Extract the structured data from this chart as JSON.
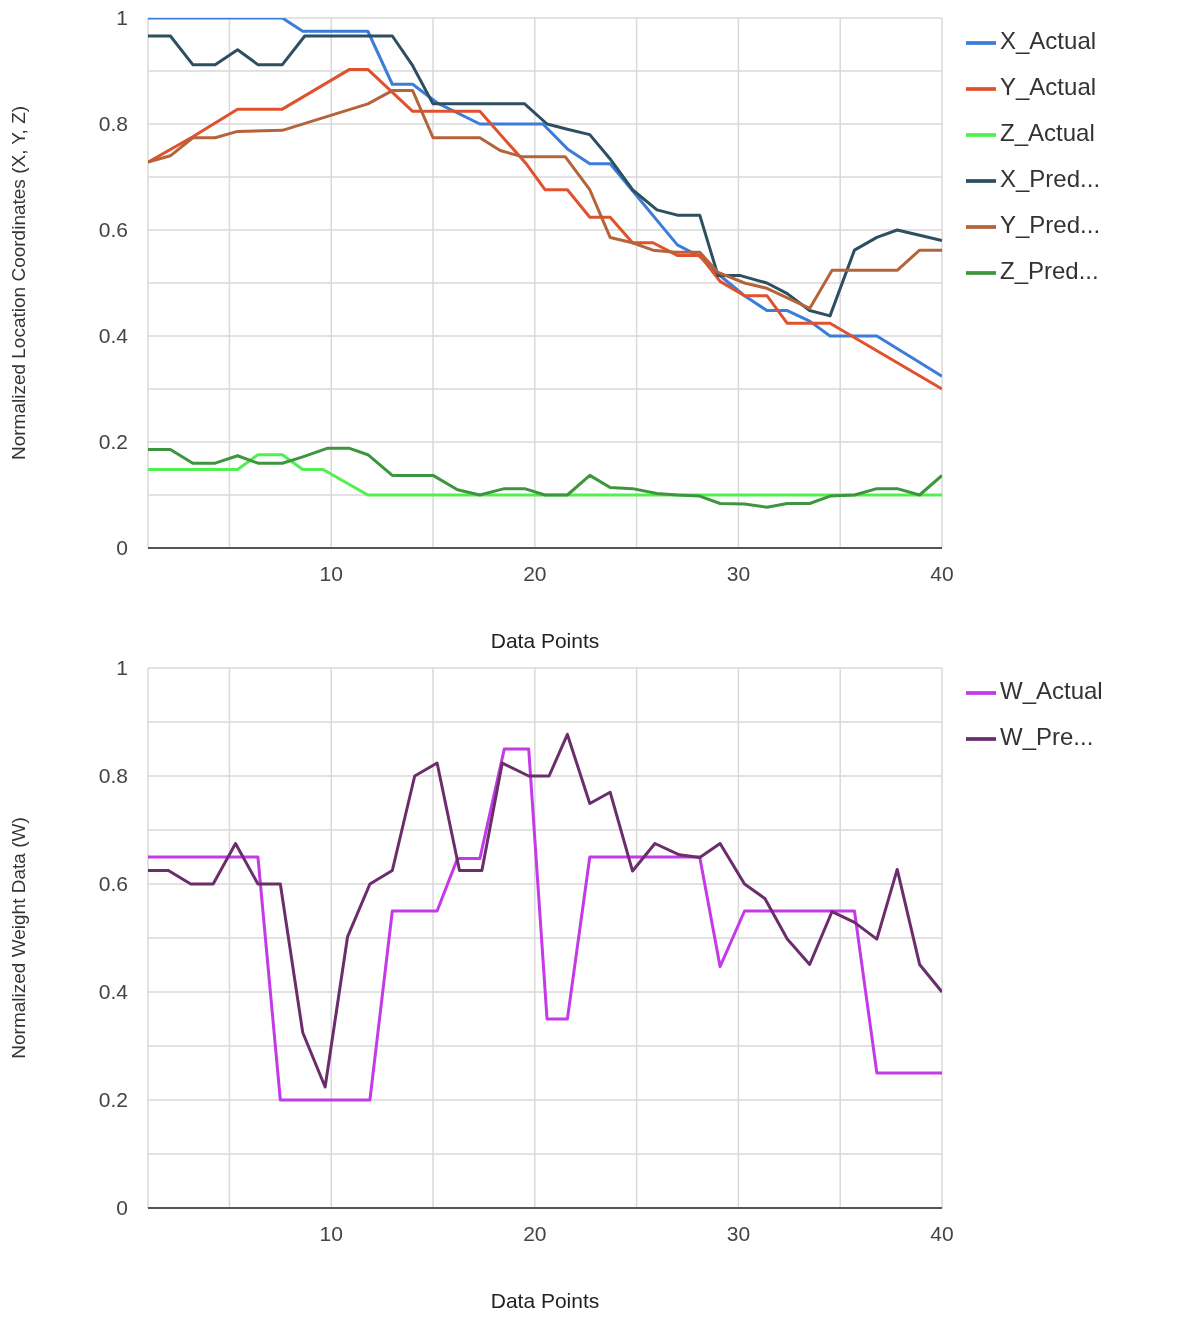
{
  "chart_data": [
    {
      "type": "line",
      "xlabel": "Data Points",
      "ylabel": "Normalized Location Coordinates (X, Y, Z)",
      "xlim": [
        1,
        40
      ],
      "xticks": [
        {
          "value": 5,
          "label": null
        },
        10,
        {
          "value": 15,
          "label": null
        },
        20,
        {
          "value": 25,
          "label": null
        },
        30,
        {
          "value": 35,
          "label": null
        },
        40
      ],
      "ylim": [
        0,
        1
      ],
      "yticks": [
        0,
        {
          "value": 0.1,
          "label": null
        },
        0.2,
        {
          "value": 0.3,
          "label": null
        },
        0.4,
        {
          "value": 0.5,
          "label": null
        },
        0.6,
        {
          "value": 0.7,
          "label": null
        },
        0.8,
        {
          "value": 0.9,
          "label": null
        },
        1
      ],
      "grid": true,
      "legend": "top right",
      "marker": "none",
      "line_style": "solid",
      "series": [
        {
          "name": "X_Actual",
          "color": "#3b7dd8",
          "x": [
            1,
            7.6,
            8.6,
            11.8,
            13,
            14,
            15.2,
            17.3,
            20.4,
            21.6,
            22.7,
            23.7,
            27,
            28.1,
            29,
            30.3,
            31.4,
            32.4,
            33.5,
            34.5,
            36.8,
            40
          ],
          "values": [
            1,
            1,
            0.975,
            0.975,
            0.875,
            0.875,
            0.84,
            0.8,
            0.8,
            0.753,
            0.725,
            0.725,
            0.572,
            0.55,
            0.517,
            0.476,
            0.448,
            0.448,
            0.428,
            0.4,
            0.4,
            0.324
          ]
        },
        {
          "name": "Y_Actual",
          "color": "#e0522d",
          "x": [
            1,
            3.2,
            5.4,
            7.6,
            10.9,
            11.8,
            14,
            17.3,
            19.6,
            20.5,
            21.6,
            22.7,
            23.7,
            24.8,
            25.8,
            27,
            28.1,
            29.1,
            30.3,
            31.4,
            32.4,
            34.5,
            40
          ],
          "values": [
            0.728,
            0.776,
            0.828,
            0.828,
            0.903,
            0.903,
            0.824,
            0.824,
            0.724,
            0.676,
            0.676,
            0.624,
            0.624,
            0.576,
            0.576,
            0.552,
            0.552,
            0.503,
            0.476,
            0.476,
            0.424,
            0.424,
            0.3
          ]
        },
        {
          "name": "Z_Actual",
          "color": "#4ff04f",
          "x": [
            1,
            5.4,
            6.4,
            7.6,
            8.6,
            9.6,
            11.8,
            40
          ],
          "values": [
            0.148,
            0.148,
            0.176,
            0.176,
            0.148,
            0.148,
            0.1,
            0.1
          ]
        },
        {
          "name": "X_Pred...",
          "color": "#2d4f5f",
          "x": [
            1,
            2.1,
            3.2,
            4.3,
            5.4,
            6.4,
            7.6,
            8.7,
            13,
            14,
            15,
            19.5,
            20.6,
            21.6,
            22.7,
            23.7,
            24.8,
            26,
            27,
            28.1,
            29,
            30.1,
            31.4,
            32.4,
            33.5,
            34.5,
            35.7,
            36.8,
            37.8,
            38.9,
            40
          ],
          "values": [
            0.966,
            0.966,
            0.912,
            0.912,
            0.94,
            0.912,
            0.912,
            0.966,
            0.966,
            0.91,
            0.838,
            0.838,
            0.8,
            0.79,
            0.78,
            0.734,
            0.676,
            0.638,
            0.628,
            0.628,
            0.514,
            0.514,
            0.5,
            0.48,
            0.448,
            0.438,
            0.562,
            0.586,
            0.6,
            0.59,
            0.58
          ]
        },
        {
          "name": "Y_Pred...",
          "color": "#b5633a",
          "x": [
            1,
            2.1,
            3.2,
            4.3,
            5.4,
            7.6,
            11.8,
            13,
            14,
            15,
            17.3,
            18.3,
            19.4,
            21.5,
            22.7,
            23.7,
            24.8,
            25.8,
            26.9,
            28.1,
            29,
            30.3,
            31.4,
            32.4,
            33.5,
            34.6,
            37.8,
            38.9,
            40
          ],
          "values": [
            0.728,
            0.74,
            0.774,
            0.774,
            0.786,
            0.788,
            0.838,
            0.863,
            0.863,
            0.774,
            0.774,
            0.75,
            0.738,
            0.738,
            0.676,
            0.586,
            0.576,
            0.562,
            0.558,
            0.558,
            0.52,
            0.5,
            0.49,
            0.472,
            0.452,
            0.524,
            0.524,
            0.562,
            0.562
          ]
        },
        {
          "name": "Z_Pred...",
          "color": "#3d963d",
          "x": [
            1,
            2.1,
            3.2,
            4.3,
            5.4,
            6.4,
            7.6,
            8.6,
            9.8,
            10.9,
            11.8,
            13,
            15,
            16.2,
            17.3,
            18.5,
            19.5,
            20.5,
            21.6,
            22.7,
            23.7,
            24.8,
            26,
            27,
            28.1,
            29.1,
            30.3,
            31.4,
            32.4,
            33.5,
            34.5,
            35.7,
            36.8,
            37.8,
            38.9,
            40
          ],
          "values": [
            0.186,
            0.186,
            0.16,
            0.16,
            0.174,
            0.16,
            0.16,
            0.172,
            0.188,
            0.188,
            0.176,
            0.137,
            0.137,
            0.11,
            0.1,
            0.112,
            0.112,
            0.1,
            0.1,
            0.137,
            0.114,
            0.112,
            0.103,
            0.1,
            0.098,
            0.084,
            0.083,
            0.077,
            0.084,
            0.084,
            0.098,
            0.1,
            0.112,
            0.112,
            0.1,
            0.137
          ]
        }
      ]
    },
    {
      "type": "line",
      "xlabel": "Data Points",
      "ylabel": "Normalized Weight Data  (W)",
      "xlim": [
        1,
        40
      ],
      "xticks": [
        {
          "value": 5,
          "label": null
        },
        10,
        {
          "value": 15,
          "label": null
        },
        20,
        {
          "value": 25,
          "label": null
        },
        30,
        {
          "value": 35,
          "label": null
        },
        40
      ],
      "ylim": [
        0,
        1
      ],
      "yticks": [
        0,
        {
          "value": 0.1,
          "label": null
        },
        0.2,
        {
          "value": 0.3,
          "label": null
        },
        0.4,
        {
          "value": 0.5,
          "label": null
        },
        0.6,
        {
          "value": 0.7,
          "label": null
        },
        0.8,
        {
          "value": 0.9,
          "label": null
        },
        1
      ],
      "grid": true,
      "legend": "top right",
      "marker": "none",
      "line_style": "solid",
      "series": [
        {
          "name": "W_Actual",
          "color": "#c43ae8",
          "x": [
            1,
            6.4,
            7.5,
            11.9,
            13,
            15.2,
            16.2,
            17.3,
            18.5,
            19.7,
            20.6,
            21.6,
            22.7,
            28.1,
            29.1,
            30.3,
            35.7,
            36.8,
            40
          ],
          "values": [
            0.65,
            0.65,
            0.2,
            0.2,
            0.55,
            0.55,
            0.647,
            0.647,
            0.85,
            0.85,
            0.35,
            0.35,
            0.65,
            0.65,
            0.447,
            0.55,
            0.55,
            0.25,
            0.25
          ]
        },
        {
          "name": "W_Pre...",
          "color": "#6b2d6b",
          "x": [
            1,
            2,
            3.1,
            4.2,
            5.3,
            6.4,
            7.5,
            8.6,
            9.7,
            10.8,
            11.9,
            13,
            14.1,
            15.2,
            16.3,
            17.4,
            18.4,
            19.7,
            20.7,
            21.6,
            22.7,
            23.7,
            24.8,
            25.9,
            27.1,
            28.1,
            29.1,
            30.3,
            31.3,
            32.4,
            33.5,
            34.6,
            35.7,
            36.8,
            37.8,
            38.9,
            40
          ],
          "values": [
            0.625,
            0.625,
            0.6,
            0.6,
            0.675,
            0.6,
            0.6,
            0.325,
            0.224,
            0.502,
            0.6,
            0.625,
            0.8,
            0.824,
            0.625,
            0.625,
            0.824,
            0.8,
            0.8,
            0.877,
            0.749,
            0.77,
            0.624,
            0.675,
            0.654,
            0.649,
            0.675,
            0.6,
            0.573,
            0.498,
            0.451,
            0.549,
            0.529,
            0.498,
            0.627,
            0.451,
            0.4
          ]
        }
      ]
    }
  ]
}
